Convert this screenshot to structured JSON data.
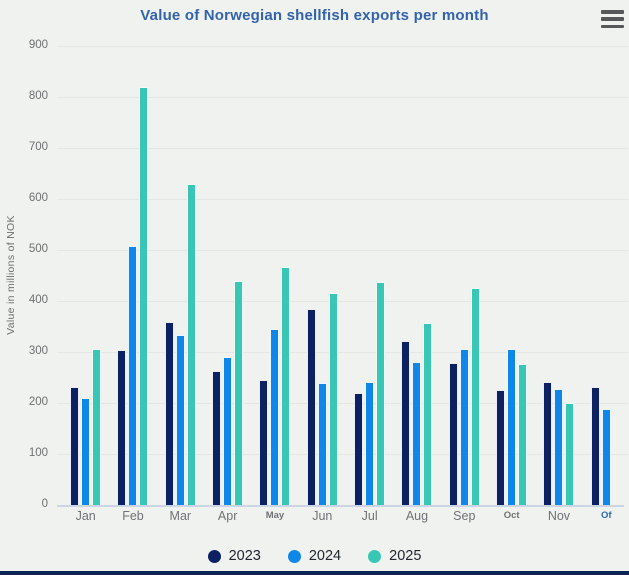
{
  "header": {
    "menu_icon": "hamburger-menu-icon"
  },
  "palette": {
    "title_text": "#3363ac",
    "axis_text": "#6e6f72",
    "background": "#f0f2ef",
    "baseline": "#ccd5e5",
    "bottom_bar": "#0e2356",
    "menu_icon": "#57585a",
    "xlabel_accent": "#2b6cb8"
  },
  "chart_data": {
    "type": "bar",
    "title": "Value of Norwegian shellfish exports per month",
    "xlabel": "",
    "ylabel": "Value in millions of NOK",
    "ylim": [
      0,
      900
    ],
    "ytick_interval": 100,
    "y_ticks": [
      0,
      100,
      200,
      300,
      400,
      500,
      600,
      700,
      800,
      900
    ],
    "grid": true,
    "legend_position": "bottom",
    "categories": [
      "Jan",
      "Feb",
      "Mar",
      "Apr",
      "May",
      "Jun",
      "Jul",
      "Aug",
      "Sep",
      "Oct",
      "Nov",
      "Of"
    ],
    "category_label_styles": [
      "normal",
      "normal",
      "normal",
      "normal",
      "small",
      "normal",
      "normal",
      "normal",
      "normal",
      "small",
      "normal",
      "small-accent"
    ],
    "series": [
      {
        "name": "2023",
        "color": "#0b2161",
        "values": [
          232,
          303,
          358,
          262,
          245,
          385,
          220,
          322,
          278,
          225,
          242,
          232
        ]
      },
      {
        "name": "2024",
        "color": "#0e87e8",
        "values": [
          210,
          507,
          333,
          290,
          345,
          240,
          242,
          280,
          305,
          305,
          227,
          188
        ]
      },
      {
        "name": "2025",
        "color": "#38c7b4",
        "values": [
          305,
          820,
          630,
          440,
          467,
          415,
          437,
          357,
          425,
          277,
          200,
          null
        ]
      }
    ]
  }
}
